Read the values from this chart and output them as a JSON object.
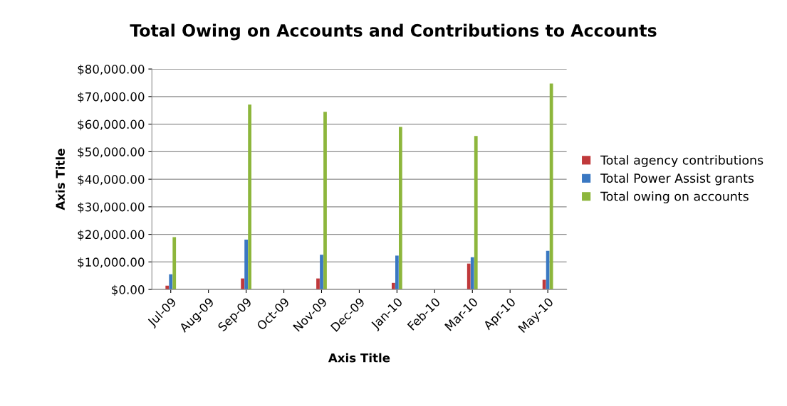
{
  "chart_data": {
    "type": "bar",
    "title": "Total Owing on Accounts and Contributions to Accounts",
    "xlabel": "Axis Title",
    "ylabel": "Axis Title",
    "categories": [
      "Jul-09",
      "Aug-09",
      "Sep-09",
      "Oct-09",
      "Nov-09",
      "Dec-09",
      "Jan-10",
      "Feb-10",
      "Mar-10",
      "Apr-10",
      "May-10"
    ],
    "series": [
      {
        "name": "Total agency contributions",
        "color": "#c0393b",
        "values": [
          1400,
          null,
          4000,
          null,
          4000,
          null,
          2400,
          null,
          9400,
          null,
          3500
        ]
      },
      {
        "name": "Total Power Assist grants",
        "color": "#3a78c2",
        "values": [
          5500,
          null,
          18100,
          null,
          12600,
          null,
          12300,
          null,
          11700,
          null,
          14000
        ]
      },
      {
        "name": "Total owing on accounts",
        "color": "#8db63c",
        "values": [
          19000,
          null,
          67100,
          null,
          64500,
          null,
          59000,
          null,
          55700,
          null,
          74700
        ]
      }
    ],
    "ylim": [
      0,
      80000
    ],
    "yticks": [
      {
        "value": 0,
        "label": "$0.00"
      },
      {
        "value": 10000,
        "label": "$10,000.00"
      },
      {
        "value": 20000,
        "label": "$20,000.00"
      },
      {
        "value": 30000,
        "label": "$30,000.00"
      },
      {
        "value": 40000,
        "label": "$40,000.00"
      },
      {
        "value": 50000,
        "label": "$50,000.00"
      },
      {
        "value": 60000,
        "label": "$60,000.00"
      },
      {
        "value": 70000,
        "label": "$70,000.00"
      },
      {
        "value": 80000,
        "label": "$80,000.00"
      }
    ],
    "grid": "y",
    "legend": "right"
  }
}
